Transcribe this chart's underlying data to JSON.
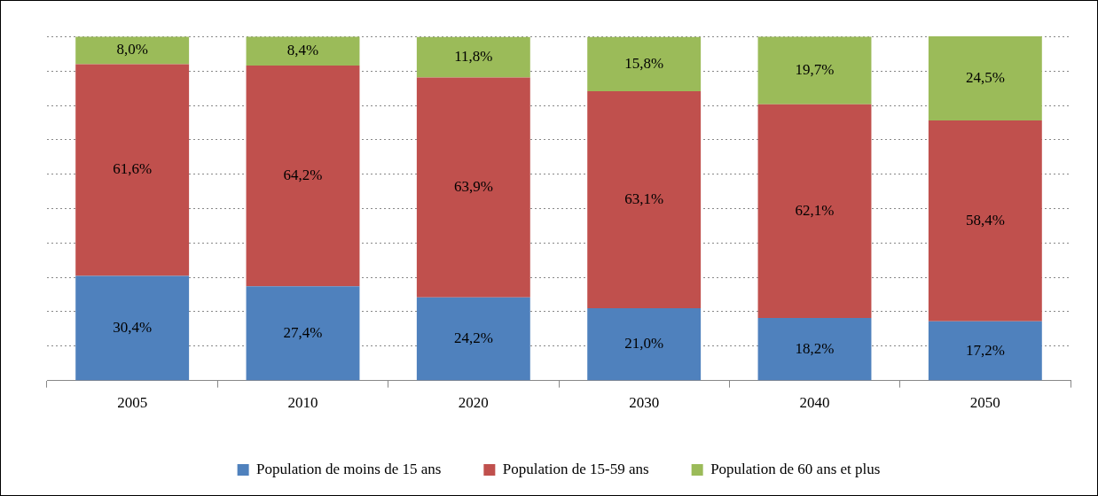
{
  "chart_data": {
    "type": "bar",
    "stacked": true,
    "categories": [
      "2005",
      "2010",
      "2020",
      "2030",
      "2040",
      "2050"
    ],
    "series": [
      {
        "name": "Population de moins de 15 ans",
        "color": "#4f81bd",
        "values": [
          30.4,
          27.4,
          24.2,
          21.0,
          18.2,
          17.2
        ],
        "value_labels": [
          "30,4%",
          "27,4%",
          "24,2%",
          "21,0%",
          "18,2%",
          "17,2%"
        ]
      },
      {
        "name": "Population de 15-59 ans",
        "color": "#c0504d",
        "values": [
          61.6,
          64.2,
          63.9,
          63.1,
          62.1,
          58.4
        ],
        "value_labels": [
          "61,6%",
          "64,2%",
          "63,9%",
          "63,1%",
          "62,1%",
          "58,4%"
        ]
      },
      {
        "name": "Population de 60 ans et plus",
        "color": "#9bbb59",
        "values": [
          8.0,
          8.4,
          11.8,
          15.8,
          19.7,
          24.5
        ],
        "value_labels": [
          "8,0%",
          "8,4%",
          "11,8%",
          "15,8%",
          "19,7%",
          "24,5%"
        ]
      }
    ],
    "ylim": [
      0,
      100.1
    ],
    "yticks": [
      {
        "value": 10,
        "label": null
      },
      {
        "value": 20,
        "label": null
      },
      {
        "value": 30,
        "label": null
      },
      {
        "value": 40,
        "label": null
      },
      {
        "value": 50,
        "label": null
      },
      {
        "value": 60,
        "label": null
      },
      {
        "value": 70,
        "label": null
      },
      {
        "value": 80,
        "label": null
      },
      {
        "value": 90,
        "label": null
      },
      {
        "value": 100,
        "label": null
      }
    ],
    "tick_labels": "x",
    "grid": "y",
    "legend": "bottom"
  }
}
